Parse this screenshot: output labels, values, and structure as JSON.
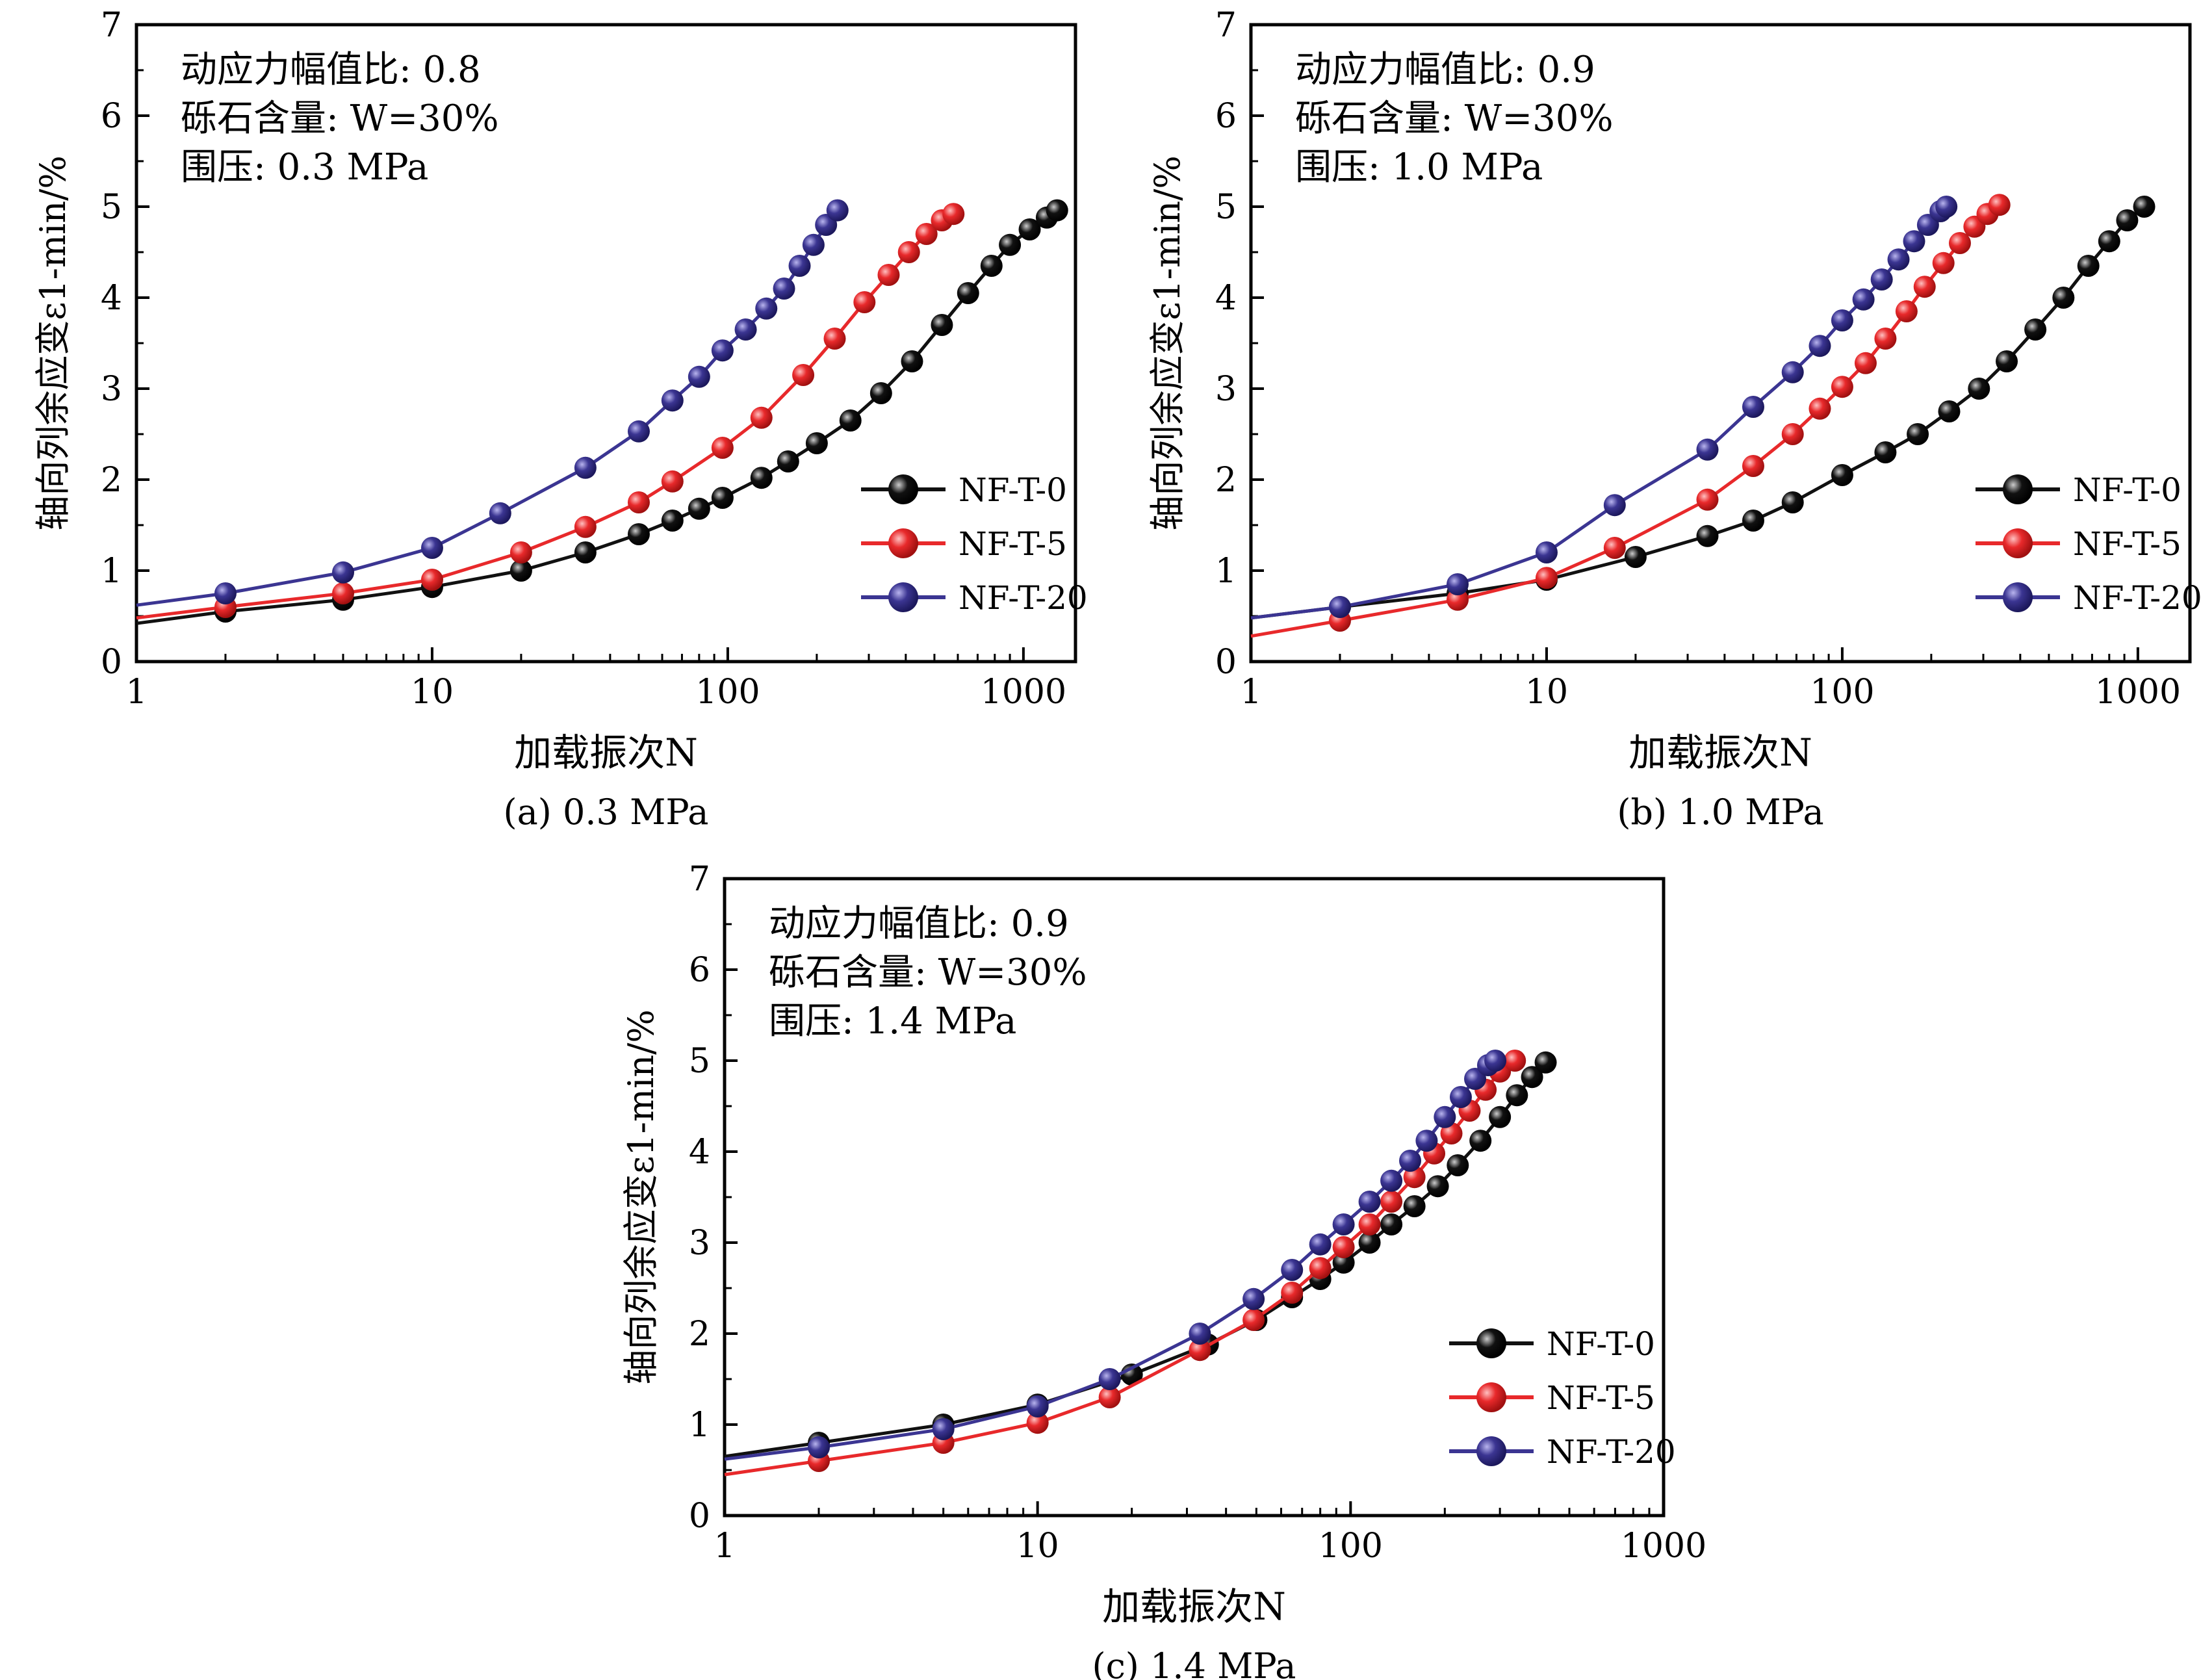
{
  "chart_data": [
    {
      "type": "line",
      "title": "",
      "caption": "(a) 0.3 MPa",
      "xlabel": "加载振次N",
      "ylabel": "轴向列余应变ε1-min/%",
      "x_scale": "log",
      "xlim": [
        1,
        1500
      ],
      "ylim": [
        0,
        7
      ],
      "x_ticks": [
        "1",
        "10",
        "100",
        "1000"
      ],
      "y_ticks": [
        "0",
        "1",
        "2",
        "3",
        "4",
        "5",
        "6",
        "7"
      ],
      "annotations": [
        "动应力幅值比: 0.8",
        "砾石含量: W=30%",
        "围压: 0.3 MPa"
      ],
      "legend": "lower-right",
      "series": [
        {
          "name": "NF-T-0",
          "color": "#111111",
          "x": [
            1,
            2,
            5,
            10,
            20,
            33,
            50,
            65,
            80,
            96,
            130,
            160,
            200,
            260,
            330,
            420,
            530,
            650,
            780,
            900,
            1050,
            1200,
            1300
          ],
          "y": [
            0.42,
            0.55,
            0.68,
            0.82,
            1.0,
            1.2,
            1.4,
            1.55,
            1.68,
            1.8,
            2.02,
            2.2,
            2.4,
            2.65,
            2.95,
            3.3,
            3.7,
            4.05,
            4.35,
            4.58,
            4.75,
            4.88,
            4.96
          ]
        },
        {
          "name": "NF-T-5",
          "color": "#e8292b",
          "x": [
            1,
            2,
            5,
            10,
            20,
            33,
            50,
            65,
            96,
            130,
            180,
            230,
            290,
            350,
            410,
            470,
            530,
            580
          ],
          "y": [
            0.48,
            0.6,
            0.75,
            0.9,
            1.2,
            1.48,
            1.75,
            1.98,
            2.35,
            2.68,
            3.15,
            3.55,
            3.95,
            4.25,
            4.5,
            4.7,
            4.85,
            4.92
          ]
        },
        {
          "name": "NF-T-20",
          "color": "#3b3592",
          "x": [
            1,
            2,
            5,
            10,
            17,
            33,
            50,
            65,
            80,
            96,
            115,
            135,
            155,
            175,
            195,
            215,
            235
          ],
          "y": [
            0.62,
            0.75,
            0.98,
            1.25,
            1.63,
            2.13,
            2.53,
            2.87,
            3.13,
            3.42,
            3.65,
            3.88,
            4.1,
            4.35,
            4.58,
            4.8,
            4.96
          ]
        }
      ]
    },
    {
      "type": "line",
      "title": "",
      "caption": "(b) 1.0 MPa",
      "xlabel": "加载振次N",
      "ylabel": "轴向列余应变ε1-min/%",
      "x_scale": "log",
      "xlim": [
        1,
        1500
      ],
      "ylim": [
        0,
        7
      ],
      "x_ticks": [
        "1",
        "10",
        "100",
        "1000"
      ],
      "y_ticks": [
        "0",
        "1",
        "2",
        "3",
        "4",
        "5",
        "6",
        "7"
      ],
      "annotations": [
        "动应力幅值比: 0.9",
        "砾石含量: W=30%",
        "围压: 1.0 MPa"
      ],
      "legend": "lower-right",
      "series": [
        {
          "name": "NF-T-0",
          "color": "#111111",
          "x": [
            1,
            2,
            5,
            10,
            20,
            35,
            50,
            68,
            100,
            140,
            180,
            230,
            290,
            360,
            450,
            560,
            680,
            800,
            920,
            1050
          ],
          "y": [
            0.48,
            0.6,
            0.75,
            0.9,
            1.15,
            1.38,
            1.55,
            1.75,
            2.05,
            2.3,
            2.5,
            2.75,
            3.0,
            3.3,
            3.65,
            4.0,
            4.35,
            4.62,
            4.85,
            5.0
          ]
        },
        {
          "name": "NF-T-5",
          "color": "#e8292b",
          "x": [
            1,
            2,
            5,
            10,
            17,
            35,
            50,
            68,
            84,
            100,
            120,
            140,
            165,
            190,
            220,
            250,
            280,
            310,
            340
          ],
          "y": [
            0.28,
            0.45,
            0.68,
            0.92,
            1.25,
            1.78,
            2.15,
            2.5,
            2.78,
            3.02,
            3.28,
            3.55,
            3.85,
            4.12,
            4.38,
            4.6,
            4.78,
            4.92,
            5.02
          ]
        },
        {
          "name": "NF-T-20",
          "color": "#3b3592",
          "x": [
            1,
            2,
            5,
            10,
            17,
            35,
            50,
            68,
            84,
            100,
            118,
            136,
            155,
            175,
            195,
            215,
            225
          ],
          "y": [
            0.48,
            0.6,
            0.85,
            1.2,
            1.72,
            2.33,
            2.8,
            3.18,
            3.47,
            3.75,
            3.98,
            4.2,
            4.42,
            4.62,
            4.8,
            4.95,
            5.0
          ]
        }
      ]
    },
    {
      "type": "line",
      "title": "",
      "caption": "(c) 1.4 MPa",
      "xlabel": "加载振次N",
      "ylabel": "轴向列余应变ε1-min/%",
      "x_scale": "log",
      "xlim": [
        1,
        1000
      ],
      "ylim": [
        0,
        7
      ],
      "x_ticks": [
        "1",
        "10",
        "100",
        "1000"
      ],
      "y_ticks": [
        "0",
        "1",
        "2",
        "3",
        "4",
        "5",
        "6",
        "7"
      ],
      "annotations": [
        "动应力幅值比: 0.9",
        "砾石含量: W=30%",
        "围压: 1.4 MPa"
      ],
      "legend": "lower-right",
      "series": [
        {
          "name": "NF-T-0",
          "color": "#111111",
          "x": [
            1,
            2,
            5,
            10,
            20,
            35,
            50,
            65,
            80,
            95,
            115,
            135,
            160,
            190,
            220,
            260,
            300,
            340,
            380,
            420
          ],
          "y": [
            0.65,
            0.8,
            1.0,
            1.22,
            1.55,
            1.88,
            2.15,
            2.4,
            2.6,
            2.78,
            3.0,
            3.2,
            3.4,
            3.62,
            3.85,
            4.12,
            4.38,
            4.62,
            4.82,
            4.98
          ]
        },
        {
          "name": "NF-T-5",
          "color": "#e8292b",
          "x": [
            1,
            2,
            5,
            10,
            17,
            33,
            49,
            65,
            80,
            95,
            115,
            135,
            160,
            185,
            210,
            240,
            270,
            300,
            335
          ],
          "y": [
            0.45,
            0.6,
            0.8,
            1.02,
            1.3,
            1.82,
            2.15,
            2.45,
            2.72,
            2.95,
            3.2,
            3.45,
            3.72,
            3.98,
            4.2,
            4.45,
            4.68,
            4.88,
            5.0
          ]
        },
        {
          "name": "NF-T-20",
          "color": "#3b3592",
          "x": [
            1,
            2,
            5,
            10,
            17,
            33,
            49,
            65,
            80,
            95,
            115,
            135,
            155,
            175,
            200,
            225,
            250,
            275,
            290
          ],
          "y": [
            0.62,
            0.75,
            0.95,
            1.2,
            1.5,
            2.0,
            2.38,
            2.7,
            2.98,
            3.2,
            3.45,
            3.68,
            3.9,
            4.12,
            4.38,
            4.6,
            4.8,
            4.95,
            5.0
          ]
        }
      ]
    }
  ]
}
